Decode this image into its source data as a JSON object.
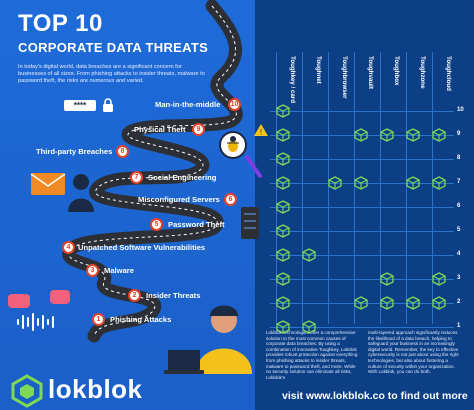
{
  "header": {
    "title": "TOP 10",
    "subtitle": "CORPORATE DATA THREATS",
    "intro_plain": "In today's digital world, data breaches are a significant concern for businesses of all sizes. From phishing attacks to insider threats, malware to password theft,",
    "intro_italic": "the risks are numerous and varied."
  },
  "threats": [
    {
      "num": "1",
      "label": "Phishing Attacks"
    },
    {
      "num": "2",
      "label": "Insider Threats"
    },
    {
      "num": "3",
      "label": "Malware"
    },
    {
      "num": "4",
      "label": "Unpatched Software Vulnerabilities"
    },
    {
      "num": "5",
      "label": "Password Theft"
    },
    {
      "num": "6",
      "label": "Misconfigured Servers"
    },
    {
      "num": "7",
      "label": "Social Engineering"
    },
    {
      "num": "8",
      "label": "Third-party Breaches"
    },
    {
      "num": "9",
      "label": "Physical Theft"
    },
    {
      "num": "10",
      "label": "Man-in-the-middle"
    }
  ],
  "password_mask": "****",
  "columns": [
    "Toughkey / card",
    "Toughnet",
    "Toughbrowser",
    "Toughvault",
    "Toughbox",
    "Toughzone",
    "Toughcloud"
  ],
  "row_numbers": [
    "10",
    "9",
    "8",
    "7",
    "6",
    "5",
    "4",
    "3",
    "2",
    "1"
  ],
  "matrix_rows": [
    {
      "row": "10",
      "cells": [
        true,
        false,
        false,
        false,
        false,
        false,
        false
      ]
    },
    {
      "row": "9",
      "cells": [
        true,
        false,
        false,
        true,
        true,
        true,
        true
      ]
    },
    {
      "row": "8",
      "cells": [
        true,
        false,
        false,
        false,
        false,
        false,
        false
      ]
    },
    {
      "row": "7",
      "cells": [
        true,
        false,
        true,
        true,
        false,
        true,
        true
      ]
    },
    {
      "row": "6",
      "cells": [
        true,
        false,
        false,
        false,
        false,
        false,
        false
      ]
    },
    {
      "row": "5",
      "cells": [
        true,
        false,
        false,
        false,
        false,
        false,
        false
      ]
    },
    {
      "row": "4",
      "cells": [
        true,
        true,
        false,
        false,
        false,
        false,
        false
      ]
    },
    {
      "row": "3",
      "cells": [
        true,
        false,
        false,
        false,
        true,
        false,
        true
      ]
    },
    {
      "row": "2",
      "cells": [
        true,
        false,
        false,
        true,
        true,
        true,
        true
      ]
    },
    {
      "row": "1",
      "cells": [
        true,
        true,
        false,
        false,
        false,
        false,
        false
      ]
    }
  ],
  "footer": {
    "left_text": "Lokblok technologies offer a comprehensive solution to the most common causes of corporate data breaches. By using a combination of innovative Toughkey, Lokblok provides robust protection against everything from phishing attacks to insider threats, malware to password theft, and more. While no security solution can eliminate all risks, Lokblok's",
    "right_text": "multi-layered approach significantly reduces the likelihood of a data breach, helping to safeguard your business in an increasingly digital world. Remember, the key to effective cybersecurity is not just about using the right technologies, but also about fostering a culture of security within your organization. With Lokblok, you can do both.",
    "visit": "visit www.lokblok.co to find out more"
  },
  "brand": {
    "name": "lokblok",
    "accent": "#7ed957",
    "badge_red": "#e2432a",
    "bg_blue": "#1e6bd8",
    "panel_navy": "#0c3f86"
  },
  "icons": [
    "lock-icon",
    "bug-icon",
    "warning-icon",
    "magnifier-icon",
    "envelope-icon",
    "hacker-icon",
    "server-icon",
    "chat-icon",
    "voice-wave-icon",
    "cube-icon",
    "headset-person-icon",
    "laptop-icon"
  ]
}
